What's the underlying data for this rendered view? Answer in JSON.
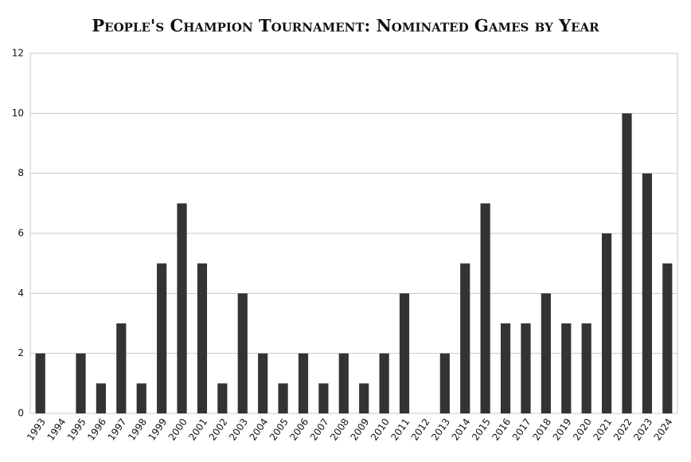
{
  "chart_data": {
    "type": "bar",
    "title": "People's Champion Tournament: Nominated Games by Year",
    "categories": [
      "1993",
      "1994",
      "1995",
      "1996",
      "1997",
      "1998",
      "1999",
      "2000",
      "2001",
      "2002",
      "2003",
      "2004",
      "2005",
      "2006",
      "2007",
      "2008",
      "2009",
      "2010",
      "2011",
      "2012",
      "2013",
      "2014",
      "2015",
      "2016",
      "2017",
      "2018",
      "2019",
      "2020",
      "2021",
      "2022",
      "2023",
      "2024"
    ],
    "values": [
      2,
      0,
      2,
      1,
      3,
      1,
      5,
      7,
      5,
      1,
      4,
      2,
      1,
      2,
      1,
      2,
      1,
      2,
      4,
      0,
      2,
      5,
      7,
      3,
      3,
      4,
      3,
      3,
      6,
      10,
      8,
      5
    ],
    "color": "#333333",
    "ylim": [
      0,
      12
    ],
    "yticks": [
      0,
      2,
      4,
      6,
      8,
      10,
      12
    ],
    "grid": true
  }
}
